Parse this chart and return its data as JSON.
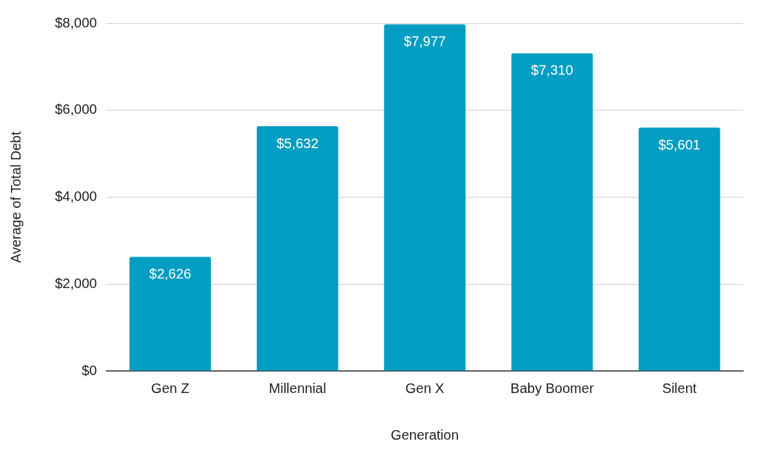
{
  "chart_data": {
    "type": "bar",
    "xlabel": "Generation",
    "ylabel": "Average of Total Debt",
    "categories": [
      "Gen Z",
      "Millennial",
      "Gen X",
      "Baby Boomer",
      "Silent"
    ],
    "values": [
      2626,
      5632,
      7977,
      7310,
      5601
    ],
    "value_labels": [
      "$2,626",
      "$5,632",
      "$7,977",
      "$7,310",
      "$5,601"
    ],
    "color": "#019dc2",
    "ylim": [
      0,
      8000
    ],
    "yticks": [
      {
        "value": 0,
        "label": "$0"
      },
      {
        "value": 2000,
        "label": "$2,000"
      },
      {
        "value": 4000,
        "label": "$4,000"
      },
      {
        "value": 6000,
        "label": "$6,000"
      },
      {
        "value": 8000,
        "label": "$8,000"
      }
    ],
    "grid": "y",
    "legend": false
  }
}
